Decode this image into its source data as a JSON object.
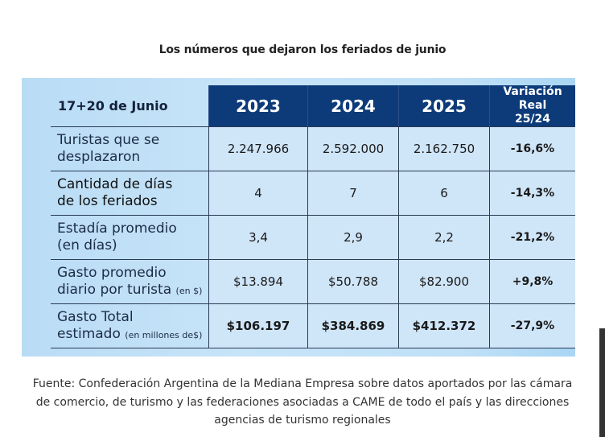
{
  "title": "Los números que dejaron los feriados de junio",
  "table": {
    "header": {
      "label": "17+20 de Junio",
      "years": [
        "2023",
        "2024",
        "2025"
      ],
      "variation_line1": "Variación Real",
      "variation_line2": "25/24"
    },
    "rows": [
      {
        "label_line1": "Turistas que se",
        "label_line2": "desplazaron",
        "label_note": "",
        "values": [
          "2.247.966",
          "2.592.000",
          "2.162.750"
        ],
        "variation": "-16,6%"
      },
      {
        "label_line1": "Cantidad de días",
        "label_line2": "de los feriados",
        "label_note": "",
        "values": [
          "4",
          "7",
          "6"
        ],
        "variation": "-14,3%"
      },
      {
        "label_line1": "Estadía promedio",
        "label_line2": "(en días)",
        "label_note": "",
        "values": [
          "3,4",
          "2,9",
          "2,2"
        ],
        "variation": "-21,2%"
      },
      {
        "label_line1": "Gasto promedio",
        "label_line2": "diario por turista",
        "label_note": "(en $)",
        "values": [
          "$13.894",
          "$50.788",
          "$82.900"
        ],
        "variation": "+9,8%"
      },
      {
        "label_line1": "Gasto Total",
        "label_line2": "estimado",
        "label_note": "(en millones de$)",
        "values": [
          "$106.197",
          "$384.869",
          "$412.372"
        ],
        "variation": "-27,9%"
      }
    ]
  },
  "source": {
    "line1": "Fuente: Confederación Argentina de la Mediana Empresa sobre datos aportados por las cámara",
    "line2": "de comercio, de turismo y las federaciones asociadas a CAME de todo el país y las direcciones",
    "line3": "agencias de turismo regionales"
  },
  "colors": {
    "header_navy": "#0d3b7a",
    "panel_light_blue": "#c7e4f8",
    "cell_blue": "#cfe5f8"
  }
}
